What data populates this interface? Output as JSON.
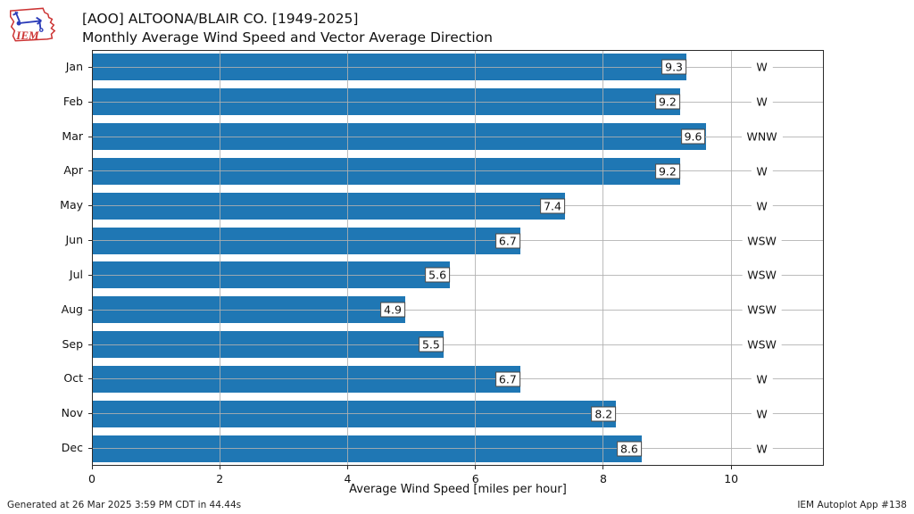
{
  "header": {
    "logo_text": "IEM"
  },
  "chart_data": {
    "type": "bar",
    "orientation": "horizontal",
    "title": "[AOO] ALTOONA/BLAIR CO. [1949-2025]",
    "subtitle": "Monthly Average Wind Speed and Vector Average Direction",
    "categories": [
      "Jan",
      "Feb",
      "Mar",
      "Apr",
      "May",
      "Jun",
      "Jul",
      "Aug",
      "Sep",
      "Oct",
      "Nov",
      "Dec"
    ],
    "values": [
      9.3,
      9.2,
      9.6,
      9.2,
      7.4,
      6.7,
      5.6,
      4.9,
      5.5,
      6.7,
      8.2,
      8.6
    ],
    "directions": [
      "W",
      "W",
      "WNW",
      "W",
      "W",
      "WSW",
      "WSW",
      "WSW",
      "WSW",
      "W",
      "W",
      "W"
    ],
    "xlabel": "Average Wind Speed [miles per hour]",
    "ylabel": "",
    "xticks": [
      0,
      2,
      4,
      6,
      8,
      10
    ],
    "xlim": [
      0,
      11.45
    ],
    "grid": true,
    "legend": "none",
    "bar_color": "#1f77b4",
    "grid_color": "#b0b0b0",
    "spine_color": "#2b2b2b",
    "direction_label_x": 10.48
  },
  "footer": {
    "generated_text": "Generated at 26 Mar 2025 3:59 PM CDT in 44.44s",
    "app_text": "IEM Autoplot App #138"
  }
}
